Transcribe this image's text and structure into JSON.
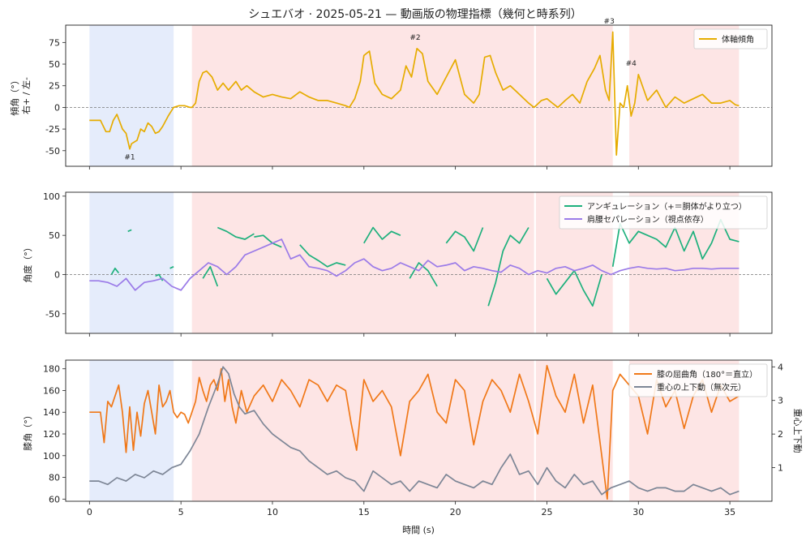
{
  "figure_title": "シュエバオ · 2025-05-21 — 動画版の物理指標（幾何と時系列）",
  "x_label": "時間 (s)",
  "x_ticks": [
    0,
    5,
    10,
    15,
    20,
    25,
    30,
    35
  ],
  "x_range": [
    -1.3,
    37.3
  ],
  "shaded_regions": {
    "blue": [
      [
        0,
        4.6
      ]
    ],
    "red": [
      [
        5.6,
        24.3
      ],
      [
        24.4,
        28.6
      ],
      [
        29.5,
        35.5
      ]
    ],
    "colors": {
      "blue": "#dce6fa",
      "red": "#fcdcdc"
    }
  },
  "chart_data": [
    {
      "type": "line",
      "ylabel": "傾角（°）\n右+ / 左-",
      "ylim": [
        -68,
        95
      ],
      "yticks": [
        -50,
        -25,
        0,
        25,
        50,
        75
      ],
      "ref_line": 0,
      "legend_position": "top-right",
      "series": [
        {
          "name": "体軸傾角",
          "color": "#e6ac00",
          "x": [
            0,
            0.4,
            0.6,
            0.9,
            1.1,
            1.3,
            1.5,
            1.8,
            2.0,
            2.2,
            2.3,
            2.6,
            2.8,
            3.0,
            3.2,
            3.4,
            3.6,
            3.8,
            4.0,
            4.3,
            4.6,
            4.9,
            5.2,
            5.5,
            5.6,
            5.8,
            6.0,
            6.2,
            6.4,
            6.7,
            7.0,
            7.3,
            7.6,
            8.0,
            8.3,
            8.6,
            9.0,
            9.5,
            10.0,
            10.5,
            11.0,
            11.5,
            12.0,
            12.5,
            13.0,
            13.5,
            14.0,
            14.2,
            14.5,
            14.8,
            15.0,
            15.3,
            15.6,
            16.0,
            16.5,
            17.0,
            17.3,
            17.6,
            17.9,
            18.2,
            18.5,
            19.0,
            19.5,
            20.0,
            20.5,
            21.0,
            21.3,
            21.6,
            21.9,
            22.2,
            22.6,
            23.0,
            23.5,
            24.0,
            24.3,
            24.7,
            25.0,
            25.3,
            25.6,
            26.0,
            26.4,
            26.8,
            27.2,
            27.6,
            27.9,
            28.2,
            28.4,
            28.6,
            28.8,
            29.0,
            29.2,
            29.4,
            29.6,
            29.8,
            30.0,
            30.5,
            31.0,
            31.5,
            32.0,
            32.5,
            33.0,
            33.5,
            34.0,
            34.5,
            35.0,
            35.3,
            35.5
          ],
          "y": [
            -15,
            -15,
            -15,
            -28,
            -28,
            -15,
            -8,
            -25,
            -30,
            -48,
            -42,
            -38,
            -25,
            -28,
            -18,
            -22,
            -30,
            -28,
            -22,
            -10,
            0,
            2,
            2,
            0,
            0,
            5,
            30,
            40,
            42,
            35,
            20,
            28,
            20,
            30,
            20,
            25,
            18,
            12,
            15,
            12,
            10,
            18,
            12,
            8,
            8,
            5,
            2,
            0,
            10,
            30,
            60,
            65,
            28,
            15,
            10,
            20,
            48,
            35,
            68,
            62,
            30,
            15,
            35,
            55,
            15,
            5,
            15,
            58,
            60,
            40,
            20,
            25,
            15,
            5,
            0,
            8,
            10,
            5,
            0,
            8,
            15,
            5,
            30,
            45,
            60,
            20,
            8,
            87,
            -55,
            5,
            0,
            25,
            -10,
            5,
            38,
            8,
            20,
            0,
            12,
            5,
            10,
            15,
            5,
            5,
            8,
            3,
            2
          ]
        }
      ],
      "annotations": [
        {
          "text": "#1",
          "x": 2.2,
          "y": -60
        },
        {
          "text": "#2",
          "x": 17.8,
          "y": 78
        },
        {
          "text": "#3",
          "x": 28.4,
          "y": 97
        },
        {
          "text": "#4",
          "x": 29.6,
          "y": 48
        }
      ]
    },
    {
      "type": "line",
      "ylabel": "角度（°）",
      "ylim": [
        -75,
        105
      ],
      "yticks": [
        -50,
        0,
        50,
        100
      ],
      "ref_line": 0,
      "legend_position": "top-right",
      "series": [
        {
          "name": "アンギュレーション（+＝胴体がより立つ）",
          "color": "#1db07c",
          "segments": [
            {
              "x": [
                1.2,
                1.4,
                1.6
              ],
              "y": [
                0,
                8,
                2
              ]
            },
            {
              "x": [
                2.1,
                2.3
              ],
              "y": [
                55,
                57
              ]
            },
            {
              "x": [
                3.6,
                3.8,
                4.0
              ],
              "y": [
                -2,
                0,
                -8
              ]
            },
            {
              "x": [
                4.4,
                4.6
              ],
              "y": [
                8,
                10
              ]
            },
            {
              "x": [
                6.2,
                6.6,
                7.0
              ],
              "y": [
                -5,
                10,
                -15
              ]
            },
            {
              "x": [
                7.0,
                7.5,
                8.0,
                8.5,
                9.0
              ],
              "y": [
                60,
                55,
                48,
                45,
                52
              ]
            },
            {
              "x": [
                9.0,
                9.5,
                10.0,
                10.5
              ],
              "y": [
                48,
                50,
                40,
                35
              ]
            },
            {
              "x": [
                11.5,
                12.0,
                12.5,
                13.0,
                13.5,
                14.0
              ],
              "y": [
                38,
                25,
                18,
                10,
                15,
                12
              ]
            },
            {
              "x": [
                15.0,
                15.5,
                16.0,
                16.5,
                17.0
              ],
              "y": [
                40,
                60,
                45,
                55,
                50
              ]
            },
            {
              "x": [
                17.5,
                18.0,
                18.5,
                19.0
              ],
              "y": [
                -5,
                15,
                5,
                -15
              ]
            },
            {
              "x": [
                19.5,
                20.0,
                20.5,
                21.0,
                21.5
              ],
              "y": [
                40,
                55,
                48,
                30,
                60
              ]
            },
            {
              "x": [
                21.8,
                22.2,
                22.6,
                23.0,
                23.5,
                24.0
              ],
              "y": [
                -40,
                -10,
                30,
                50,
                40,
                60
              ]
            },
            {
              "x": [
                25.0,
                25.5,
                26.0,
                26.5,
                27.0,
                27.5,
                28.0
              ],
              "y": [
                -5,
                -25,
                -10,
                5,
                -20,
                -40,
                0
              ]
            },
            {
              "x": [
                28.6,
                29.0,
                29.5,
                30.0,
                30.5,
                31.0,
                31.5,
                32.0,
                32.5,
                33.0,
                33.5,
                34.0,
                34.5,
                35.0,
                35.5
              ],
              "y": [
                10,
                65,
                40,
                55,
                50,
                45,
                35,
                60,
                30,
                55,
                20,
                40,
                70,
                45,
                42
              ]
            }
          ]
        },
        {
          "name": "肩腰セパレーション（視点依存）",
          "color": "#9b7be8",
          "x": [
            0,
            0.5,
            1.0,
            1.5,
            2.0,
            2.5,
            3.0,
            3.5,
            4.0,
            4.5,
            5.0,
            5.5,
            6.0,
            6.5,
            7.0,
            7.5,
            8.0,
            8.5,
            9.0,
            9.5,
            10.0,
            10.5,
            11.0,
            11.5,
            12.0,
            12.5,
            13.0,
            13.5,
            14.0,
            14.5,
            15.0,
            15.5,
            16.0,
            16.5,
            17.0,
            17.5,
            18.0,
            18.5,
            19.0,
            19.5,
            20.0,
            20.5,
            21.0,
            21.5,
            22.0,
            22.5,
            23.0,
            23.5,
            24.0,
            24.5,
            25.0,
            25.5,
            26.0,
            26.5,
            27.0,
            27.5,
            28.0,
            28.5,
            29.0,
            29.5,
            30.0,
            30.5,
            31.0,
            31.5,
            32.0,
            32.5,
            33.0,
            33.5,
            34.0,
            34.5,
            35.0,
            35.5
          ],
          "y": [
            -8,
            -8,
            -10,
            -15,
            -5,
            -20,
            -10,
            -8,
            -5,
            -15,
            -20,
            -5,
            5,
            15,
            10,
            0,
            10,
            25,
            30,
            35,
            40,
            45,
            20,
            25,
            10,
            8,
            5,
            -2,
            5,
            15,
            20,
            10,
            5,
            8,
            15,
            10,
            5,
            18,
            10,
            12,
            15,
            5,
            10,
            8,
            5,
            3,
            12,
            8,
            0,
            5,
            2,
            8,
            10,
            5,
            8,
            12,
            5,
            0,
            5,
            8,
            10,
            8,
            7,
            8,
            5,
            6,
            8,
            8,
            7,
            8,
            8,
            8
          ]
        }
      ]
    },
    {
      "type": "line",
      "ylabel": "膝角（°）",
      "ylim": [
        58,
        188
      ],
      "yticks": [
        60,
        80,
        100,
        120,
        140,
        160,
        180
      ],
      "y2label": "重心上下動",
      "y2lim": [
        0.0,
        4.2
      ],
      "y2ticks": [
        1,
        2,
        3,
        4
      ],
      "legend_position": "top-right",
      "series": [
        {
          "name": "膝の屈曲角（180°＝直立）",
          "color": "#f07818",
          "axis": "left",
          "x": [
            0,
            0.4,
            0.6,
            0.8,
            1.0,
            1.2,
            1.4,
            1.6,
            1.8,
            2.0,
            2.2,
            2.4,
            2.6,
            2.8,
            3.0,
            3.2,
            3.4,
            3.6,
            3.8,
            4.0,
            4.2,
            4.4,
            4.6,
            4.8,
            5.0,
            5.2,
            5.4,
            5.6,
            5.8,
            6.0,
            6.2,
            6.4,
            6.6,
            6.8,
            7.0,
            7.2,
            7.4,
            7.6,
            7.8,
            8.0,
            8.3,
            8.6,
            9.0,
            9.5,
            10.0,
            10.5,
            11.0,
            11.5,
            12.0,
            12.5,
            13.0,
            13.5,
            14.0,
            14.3,
            14.6,
            15.0,
            15.5,
            16.0,
            16.5,
            17.0,
            17.5,
            18.0,
            18.5,
            19.0,
            19.5,
            20.0,
            20.5,
            21.0,
            21.5,
            22.0,
            22.5,
            23.0,
            23.5,
            24.0,
            24.5,
            25.0,
            25.5,
            26.0,
            26.5,
            27.0,
            27.5,
            28.0,
            28.3,
            28.6,
            29.0,
            29.5,
            30.0,
            30.5,
            31.0,
            31.5,
            32.0,
            32.5,
            33.0,
            33.5,
            34.0,
            34.5,
            35.0,
            35.5
          ],
          "y": [
            140,
            140,
            140,
            112,
            150,
            145,
            155,
            165,
            140,
            103,
            145,
            105,
            140,
            118,
            148,
            160,
            140,
            120,
            165,
            145,
            150,
            160,
            140,
            135,
            140,
            138,
            130,
            140,
            150,
            172,
            160,
            150,
            165,
            170,
            160,
            180,
            150,
            170,
            145,
            130,
            160,
            140,
            155,
            165,
            150,
            170,
            160,
            145,
            170,
            165,
            150,
            165,
            160,
            130,
            105,
            170,
            150,
            160,
            145,
            100,
            150,
            160,
            175,
            140,
            130,
            170,
            160,
            110,
            150,
            170,
            160,
            140,
            175,
            150,
            120,
            183,
            155,
            140,
            175,
            130,
            165,
            100,
            60,
            160,
            175,
            165,
            155,
            120,
            170,
            145,
            160,
            125,
            155,
            170,
            140,
            165,
            150,
            155
          ]
        },
        {
          "name": "重心の上下動（無次元）",
          "color": "#7d8696",
          "axis": "right",
          "x": [
            0,
            0.5,
            1.0,
            1.5,
            2.0,
            2.5,
            3.0,
            3.5,
            4.0,
            4.5,
            5.0,
            5.5,
            6.0,
            6.5,
            7.0,
            7.3,
            7.6,
            7.9,
            8.2,
            8.5,
            9.0,
            9.5,
            10.0,
            10.5,
            11.0,
            11.5,
            12.0,
            12.5,
            13.0,
            13.5,
            14.0,
            14.5,
            15.0,
            15.5,
            16.0,
            16.5,
            17.0,
            17.5,
            18.0,
            18.5,
            19.0,
            19.5,
            20.0,
            20.5,
            21.0,
            21.5,
            22.0,
            22.5,
            23.0,
            23.5,
            24.0,
            24.5,
            25.0,
            25.5,
            26.0,
            26.5,
            27.0,
            27.5,
            28.0,
            28.5,
            29.0,
            29.5,
            30.0,
            30.5,
            31.0,
            31.5,
            32.0,
            32.5,
            33.0,
            33.5,
            34.0,
            34.5,
            35.0,
            35.5
          ],
          "y": [
            0.6,
            0.6,
            0.5,
            0.7,
            0.6,
            0.8,
            0.7,
            0.9,
            0.8,
            1.0,
            1.1,
            1.5,
            2.0,
            2.8,
            3.5,
            4.0,
            3.8,
            3.2,
            2.8,
            2.6,
            2.7,
            2.3,
            2.0,
            1.8,
            1.6,
            1.5,
            1.2,
            1.0,
            0.8,
            0.9,
            0.7,
            0.6,
            0.3,
            0.9,
            0.7,
            0.5,
            0.6,
            0.3,
            0.6,
            0.5,
            0.4,
            0.8,
            0.6,
            0.5,
            0.4,
            0.6,
            0.5,
            1.0,
            1.4,
            0.8,
            0.9,
            0.5,
            1.0,
            0.6,
            0.4,
            0.8,
            0.5,
            0.6,
            0.2,
            0.4,
            0.5,
            0.6,
            0.4,
            0.3,
            0.4,
            0.4,
            0.3,
            0.3,
            0.5,
            0.4,
            0.3,
            0.4,
            0.2,
            0.3
          ]
        }
      ]
    }
  ]
}
